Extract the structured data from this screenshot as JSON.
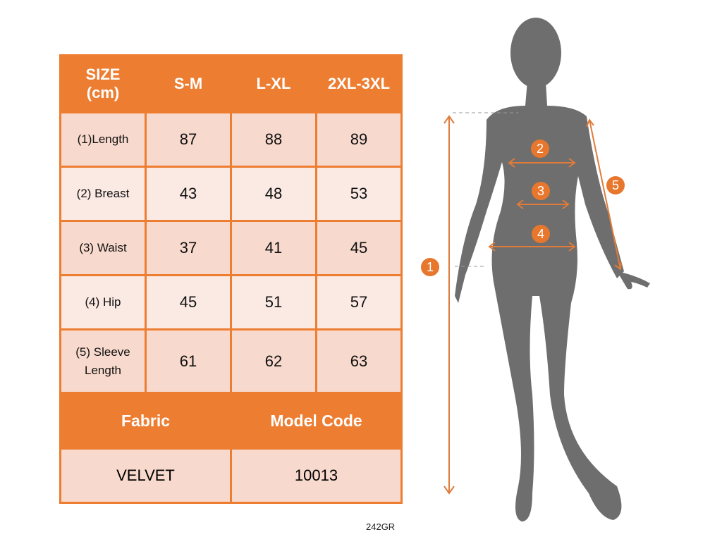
{
  "table": {
    "header": {
      "size_label": "SIZE",
      "unit_label": "(cm)",
      "sizes": [
        "S-M",
        "L-XL",
        "2XL-3XL"
      ]
    },
    "rows": [
      {
        "label": "(1)Length",
        "values": [
          "87",
          "88",
          "89"
        ]
      },
      {
        "label": "(2) Breast",
        "values": [
          "43",
          "48",
          "53"
        ]
      },
      {
        "label": "(3) Waist",
        "values": [
          "37",
          "41",
          "45"
        ]
      },
      {
        "label": "(4) Hip",
        "values": [
          "45",
          "51",
          "57"
        ]
      },
      {
        "label": "(5) Sleeve Length",
        "values": [
          "61",
          "62",
          "63"
        ]
      }
    ],
    "fabric_label": "Fabric",
    "model_code_label": "Model Code",
    "fabric_value": "VELVET",
    "model_code_value": "10013"
  },
  "product_code": "242GR",
  "diagram": {
    "markers": [
      "1",
      "2",
      "3",
      "4",
      "5"
    ]
  },
  "colors": {
    "accent": "#ed7d31",
    "row_dark": "#f8d9cd",
    "row_light": "#fbe9e3",
    "silhouette": "#6e6e6e"
  }
}
